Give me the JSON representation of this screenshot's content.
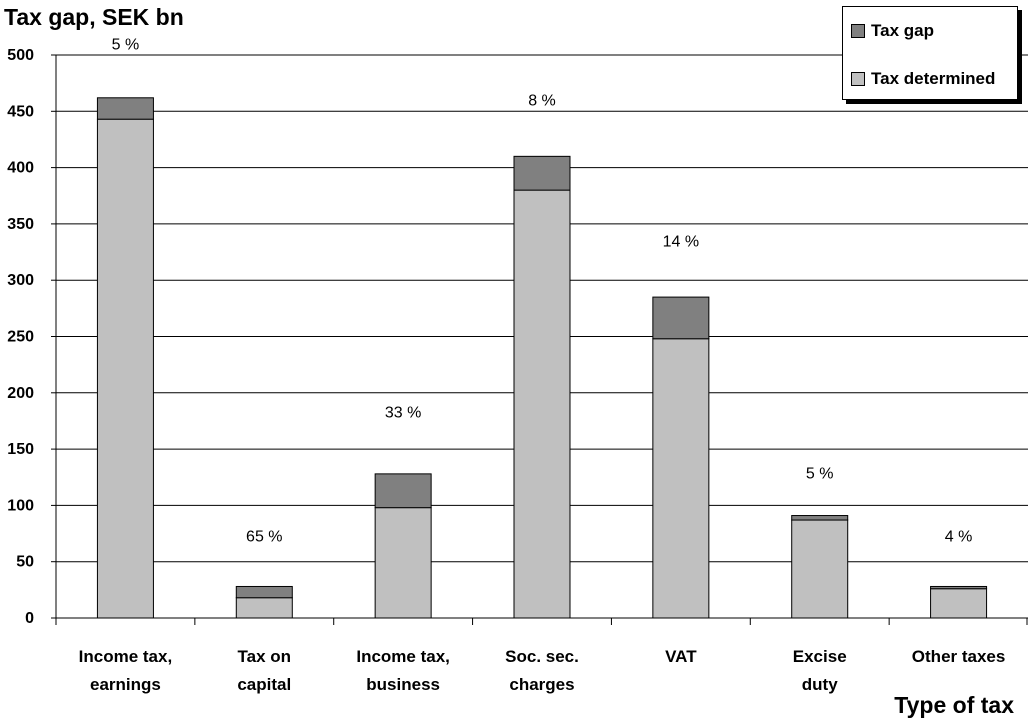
{
  "chart_data": {
    "type": "bar",
    "stacked": true,
    "title": "",
    "ylabel": "Tax gap, SEK bn",
    "xlabel": "Type of tax",
    "ylim": [
      0,
      500
    ],
    "yticks": [
      0,
      50,
      100,
      150,
      200,
      250,
      300,
      350,
      400,
      450,
      500
    ],
    "grid": true,
    "legend_position": "top-right",
    "categories": [
      [
        "Income tax,",
        "earnings"
      ],
      [
        "Tax on",
        "capital"
      ],
      [
        "Income tax,",
        "business"
      ],
      [
        "Soc. sec.",
        "charges"
      ],
      [
        "VAT"
      ],
      [
        "Excise",
        "duty"
      ],
      [
        "Other taxes"
      ]
    ],
    "series": [
      {
        "name": "Tax determined",
        "color": "#c0c0c0",
        "values": [
          443,
          18,
          98,
          380,
          248,
          87,
          26
        ]
      },
      {
        "name": "Tax gap",
        "color": "#808080",
        "values": [
          19,
          10,
          30,
          30,
          37,
          4,
          2
        ]
      }
    ],
    "annotations": [
      "5 %",
      "65 %",
      "33 %",
      "8 %",
      "14 %",
      "5 %",
      "4 %"
    ],
    "annotation_values": [
      505,
      68,
      178,
      455,
      330,
      124,
      68
    ]
  }
}
